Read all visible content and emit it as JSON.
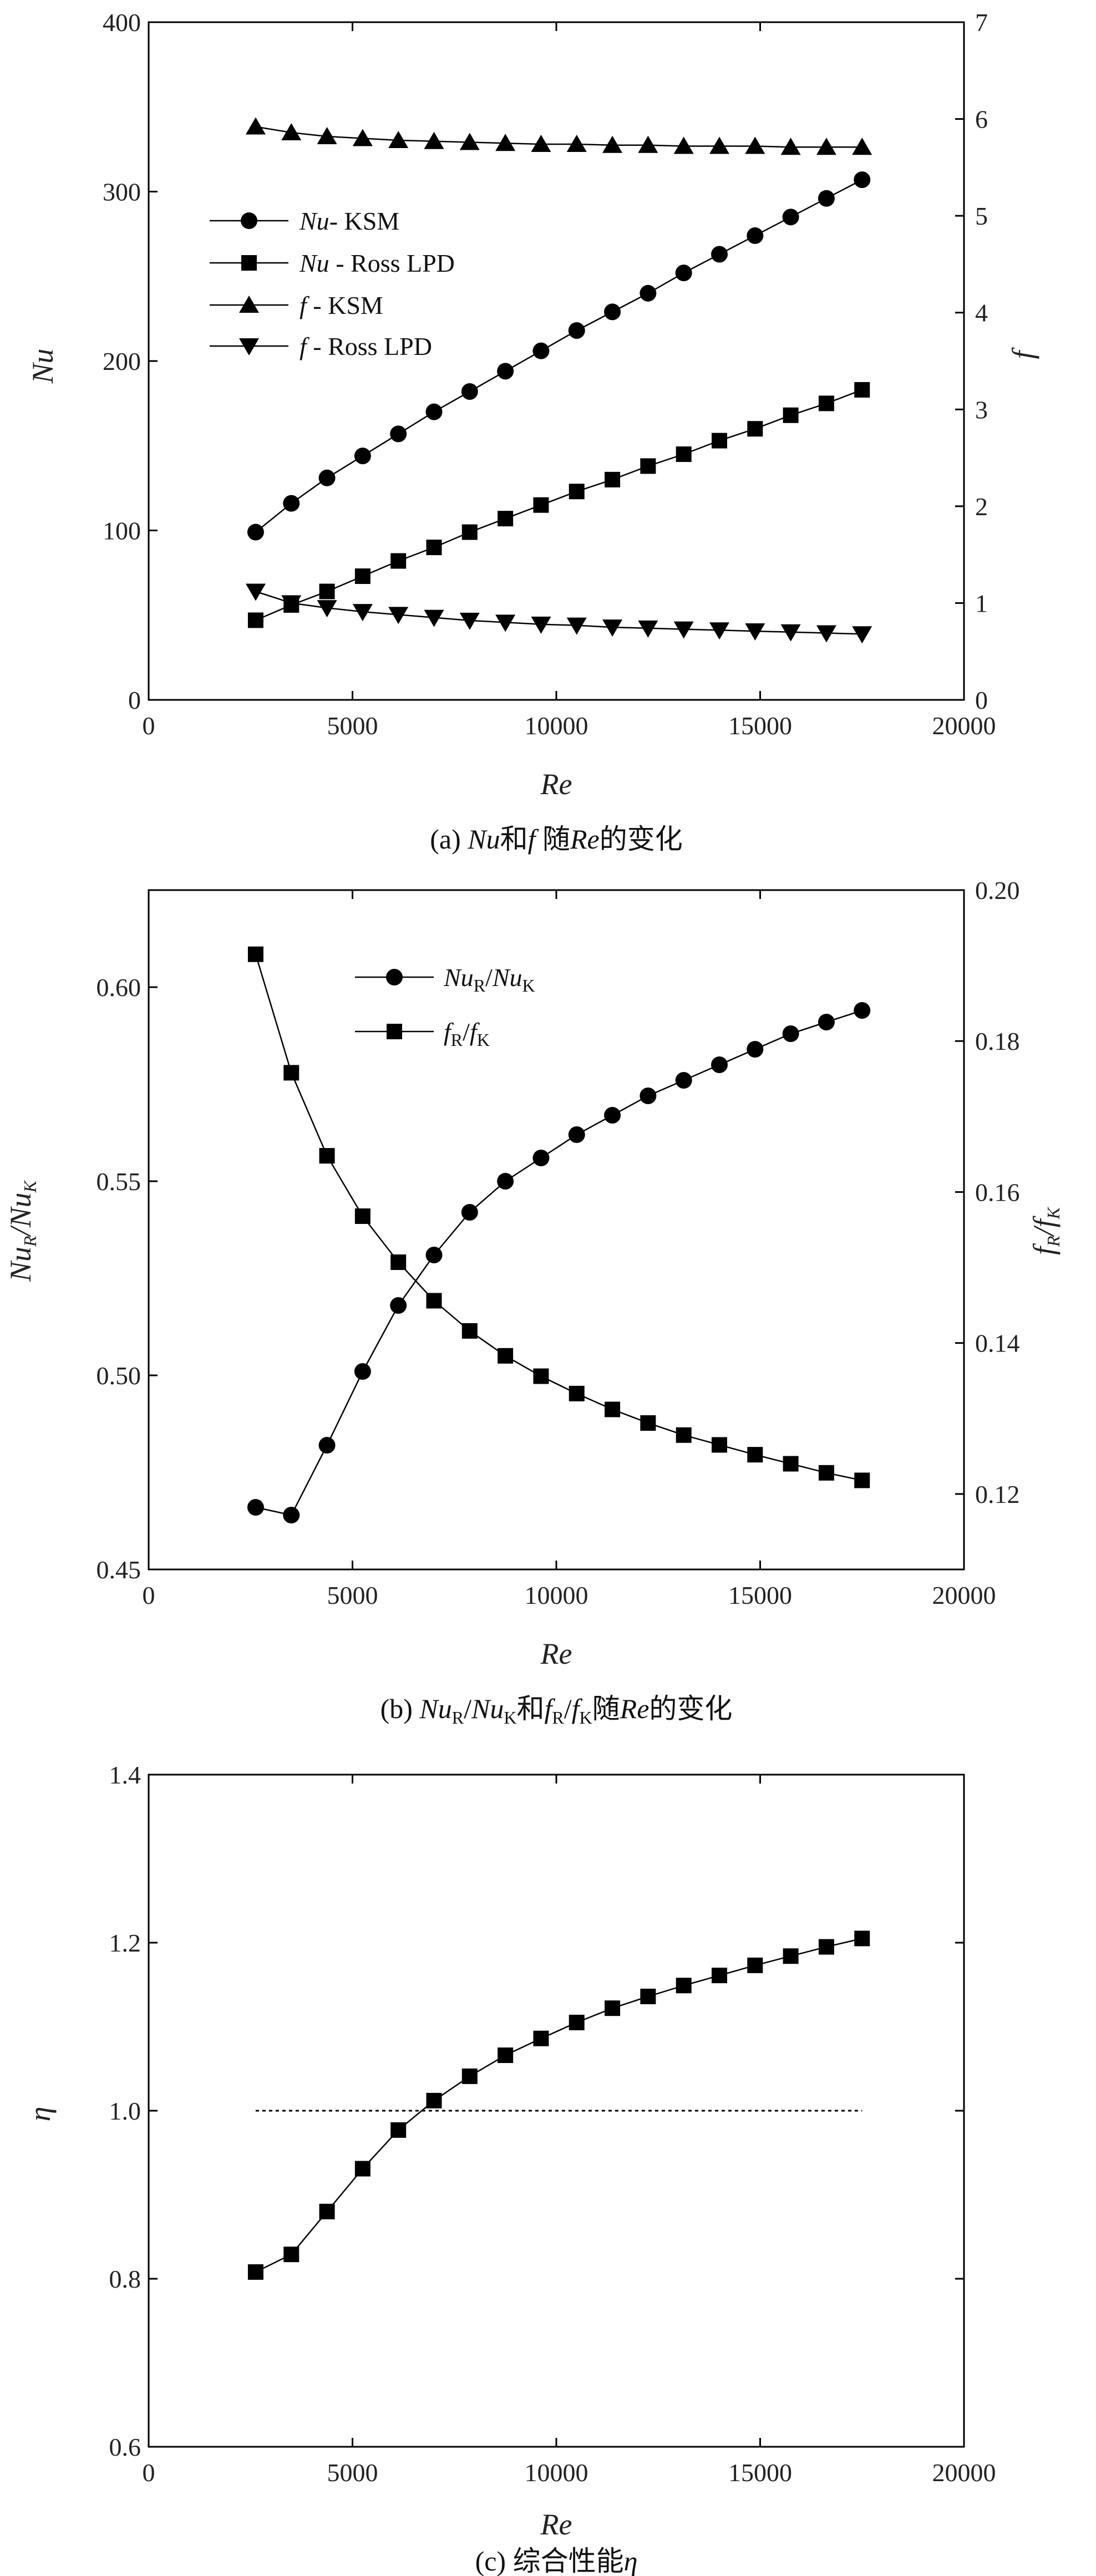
{
  "panels": [
    {
      "caption": "(a) Nu和f 随Re的变化",
      "chart_data": {
        "type": "line",
        "xlabel": "Re",
        "ylabel_left": "Nu",
        "ylabel_right": "f",
        "xlim": [
          0,
          20000
        ],
        "ylim_left": [
          0,
          400
        ],
        "ylim_right": [
          0,
          7
        ],
        "xticks": [
          0,
          5000,
          10000,
          15000,
          20000
        ],
        "yticks_left": [
          0,
          100,
          200,
          300,
          400
        ],
        "yticks_right": [
          0,
          1,
          2,
          3,
          4,
          5,
          6,
          7
        ],
        "legend_position": "middle-left",
        "x": [
          2625,
          3500,
          4375,
          5250,
          6125,
          7000,
          7875,
          8750,
          9625,
          10500,
          11375,
          12250,
          13125,
          14000,
          14875,
          15750,
          16625,
          17500
        ],
        "series": [
          {
            "name": "Nu- KSM",
            "axis": "left",
            "marker": "circle",
            "values": [
              99,
              116,
              131,
              144,
              157,
              170,
              182,
              194,
              206,
              218,
              229,
              240,
              252,
              263,
              274,
              285,
              296,
              307
            ]
          },
          {
            "name": "Nu - Ross LPD",
            "axis": "left",
            "marker": "square",
            "values": [
              47,
              56,
              64,
              73,
              82,
              90,
              99,
              107,
              115,
              123,
              130,
              138,
              145,
              153,
              160,
              168,
              175,
              183
            ]
          },
          {
            "name": "f - KSM",
            "axis": "right",
            "marker": "triangle-up",
            "values": [
              5.92,
              5.86,
              5.82,
              5.8,
              5.78,
              5.77,
              5.76,
              5.75,
              5.74,
              5.74,
              5.73,
              5.73,
              5.72,
              5.72,
              5.72,
              5.71,
              5.71,
              5.71
            ]
          },
          {
            "name": "f - Ross LPD",
            "axis": "right",
            "marker": "triangle-down",
            "values": [
              1.12,
              1.0,
              0.95,
              0.91,
              0.88,
              0.85,
              0.82,
              0.8,
              0.78,
              0.77,
              0.75,
              0.74,
              0.73,
              0.72,
              0.71,
              0.7,
              0.69,
              0.68
            ]
          }
        ]
      }
    },
    {
      "caption": "(b) NuR/NuK和f R/ f K随Re的变化",
      "chart_data": {
        "type": "line",
        "xlabel": "Re",
        "ylabel_left": "NuR/NuK",
        "ylabel_right": "f R/ f K",
        "xlim": [
          0,
          20000
        ],
        "ylim_left": [
          0.45,
          0.625
        ],
        "ylim_right": [
          0.11,
          0.2
        ],
        "xticks": [
          0,
          5000,
          10000,
          15000,
          20000
        ],
        "yticks_left": [
          0.45,
          0.5,
          0.55,
          0.6
        ],
        "yticks_right": [
          0.12,
          0.14,
          0.16,
          0.18,
          0.2
        ],
        "legend_position": "top-center",
        "x": [
          2625,
          3500,
          4375,
          5250,
          6125,
          7000,
          7875,
          8750,
          9625,
          10500,
          11375,
          12250,
          13125,
          14000,
          14875,
          15750,
          16625,
          17500
        ],
        "series": [
          {
            "name": "NuR/NuK",
            "axis": "left",
            "marker": "circle",
            "values": [
              0.466,
              0.464,
              0.482,
              0.501,
              0.518,
              0.531,
              0.542,
              0.55,
              0.556,
              0.562,
              0.567,
              0.572,
              0.576,
              0.58,
              0.584,
              0.588,
              0.591,
              0.594
            ]
          },
          {
            "name": "fR/fK",
            "axis": "right",
            "marker": "square",
            "values": [
              0.1915,
              0.1758,
              0.1648,
              0.1568,
              0.1507,
              0.1456,
              0.1416,
              0.1383,
              0.1356,
              0.1333,
              0.1312,
              0.1294,
              0.1278,
              0.1265,
              0.1252,
              0.124,
              0.1228,
              0.1218
            ]
          }
        ]
      }
    },
    {
      "caption": "(c) 综合性能η",
      "chart_data": {
        "type": "line",
        "xlabel": "Re",
        "ylabel_left": "η",
        "xlim": [
          0,
          20000
        ],
        "ylim_left": [
          0.6,
          1.4
        ],
        "xticks": [
          0,
          5000,
          10000,
          15000,
          20000
        ],
        "yticks_left": [
          0.6,
          0.8,
          1.0,
          1.2,
          1.4
        ],
        "reference_line": {
          "y": 1.0,
          "x": [
            2625,
            17500
          ],
          "style": "dotted"
        },
        "x": [
          2625,
          3500,
          4375,
          5250,
          6125,
          7000,
          7875,
          8750,
          9625,
          10500,
          11375,
          12250,
          13125,
          14000,
          14875,
          15750,
          16625,
          17500
        ],
        "series": [
          {
            "name": "",
            "axis": "left",
            "marker": "square",
            "values": [
              0.808,
              0.829,
              0.88,
              0.931,
              0.977,
              1.012,
              1.041,
              1.066,
              1.086,
              1.105,
              1.122,
              1.136,
              1.149,
              1.161,
              1.173,
              1.184,
              1.195,
              1.205
            ]
          }
        ]
      }
    }
  ],
  "text": {
    "nu": "Nu",
    "f": "f",
    "re": "Re",
    "R": "R",
    "K": "K",
    "slash": "/",
    "cap_a_prefix": "(a) ",
    "cap_a_he": "和",
    "cap_a_mid": " 随",
    "cap_tail": "的变化",
    "cap_b_prefix": "(b) ",
    "cap_b_he": "和",
    "cap_b_sui": "随",
    "cap_c": "(c) 综合性能",
    "eta": "η",
    "leg_ksm": "- KSM",
    "leg_ross": " - Ross LPD",
    "leg_f_ksm": " - KSM",
    "leg_f_ross": " - Ross LPD"
  }
}
